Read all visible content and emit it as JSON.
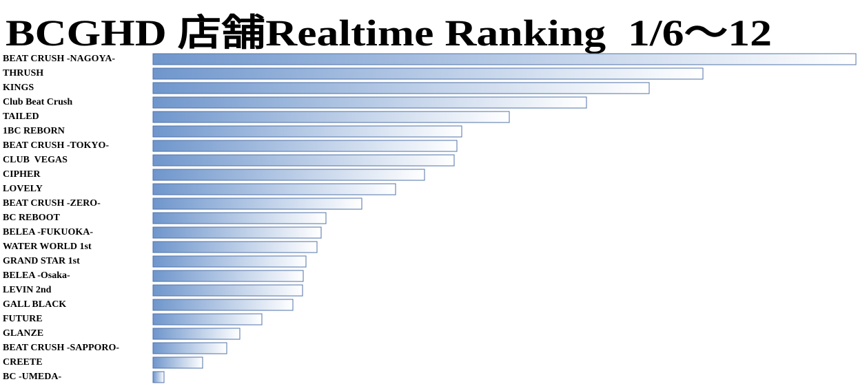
{
  "chart_data": {
    "type": "bar",
    "orientation": "horizontal",
    "title": "BCGHD 店舗Realtime Ranking  1/6～12",
    "categories": [
      "BEAT CRUSH -NAGOYA-",
      "THRUSH",
      "KINGS",
      "Club Beat Crush",
      "TAILED",
      "1BC REBORN",
      "BEAT CRUSH -TOKYO-",
      "CLUB  VEGAS",
      "CIPHER",
      "LOVELY",
      "BEAT CRUSH -ZERO-",
      "BC REBOOT",
      "BELEA -FUKUOKA-",
      "WATER WORLD 1st",
      "GRAND STAR 1st",
      "BELEA -Osaka-",
      "LEVIN 2nd",
      "GALL BLACK",
      "FUTURE",
      "GLANZE",
      "BEAT CRUSH -SAPPORO-",
      "CREETE",
      "BC -UMEDA-"
    ],
    "values": [
      1020,
      798,
      720,
      629,
      517,
      448,
      441,
      437,
      394,
      352,
      303,
      251,
      244,
      238,
      222,
      218,
      217,
      203,
      158,
      126,
      107,
      72,
      16
    ],
    "xlim": [
      0,
      1020
    ],
    "color": "#6f96cc"
  }
}
